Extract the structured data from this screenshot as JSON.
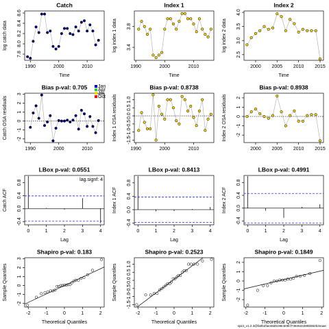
{
  "chart_data": [
    {
      "type": "line",
      "title": "Catch",
      "xlabel": "Time",
      "ylabel": "log catch data",
      "color": "#000080",
      "x": [
        1989,
        1990,
        1991,
        1992,
        1993,
        1994,
        1995,
        1996,
        1997,
        1998,
        1999,
        2000,
        2001,
        2002,
        2003,
        2004,
        2005,
        2006,
        2007,
        2008,
        2009,
        2010,
        2011,
        2012,
        2013,
        2014
      ],
      "values": [
        7.75,
        7.72,
        8.05,
        8.33,
        8.22,
        8.58,
        8.58,
        8.22,
        8.25,
        7.95,
        7.9,
        7.95,
        8.2,
        8.3,
        8.3,
        8.2,
        8.18,
        8.33,
        8.25,
        8.42,
        8.45,
        8.25,
        8.37,
        8.25,
        7.98,
        8.07
      ],
      "xlim": [
        1988,
        2016
      ],
      "ylim": [
        7.68,
        8.64
      ],
      "xticks": [
        1990,
        2000,
        2010
      ],
      "yticks": [
        7.8,
        {
          "value": 8.0,
          "label": "8.0"
        },
        8.2,
        8.4,
        8.6
      ]
    },
    {
      "type": "line",
      "title": "Index 1",
      "xlabel": "Time",
      "ylabel": "log index 1 data",
      "color": "#ffd700",
      "x": [
        1991,
        1992,
        1993,
        1994,
        1995,
        1996,
        1997,
        1998,
        1999,
        2000,
        2001,
        2002,
        2003,
        2004,
        2005,
        2006,
        2007,
        2008,
        2009,
        2010,
        2011,
        2012,
        2013,
        2014,
        2015,
        2016
      ],
      "values": [
        3.75,
        3.9,
        3.8,
        3.65,
        3.75,
        3.25,
        3.2,
        3.25,
        3.3,
        3.75,
        3.95,
        3.95,
        3.85,
        3.75,
        3.9,
        4.05,
        4.05,
        3.95,
        3.95,
        3.85,
        3.7,
        3.95,
        3.75,
        3.65,
        3.6,
        3.75
      ],
      "xlim": [
        1989.5,
        2017
      ],
      "ylim": [
        3.15,
        4.1
      ],
      "xticks": [
        1990,
        2000,
        2010
      ],
      "yticks": [
        3.4,
        3.8
      ]
    },
    {
      "type": "line",
      "title": "Index 2",
      "xlabel": "Time",
      "ylabel": "log index 2 data",
      "color": "#ffd700",
      "x": [
        1998,
        1999,
        2000,
        2001,
        2002,
        2003,
        2004,
        2005,
        2006,
        2007,
        2008,
        2009,
        2010,
        2011,
        2012,
        2013,
        2014,
        2015
      ],
      "values": [
        2.85,
        3.1,
        3.25,
        3.35,
        3.5,
        3.4,
        3.45,
        3.95,
        3.85,
        3.35,
        3.75,
        3.6,
        3.3,
        3.4,
        3.35,
        3.35,
        3.35,
        2.35
      ],
      "xlim": [
        1997.3,
        2015.8
      ],
      "ylim": [
        2.3,
        4.05
      ],
      "xticks": [
        2000,
        2005,
        2010,
        2015
      ],
      "yticks": [
        2.5,
        {
          "value": 3.0,
          "label": "3.0"
        },
        3.5,
        {
          "value": 4.0,
          "label": "4.0"
        }
      ]
    },
    {
      "type": "residual",
      "title": "Bias p-val: 0.705",
      "title_color": "#228b22",
      "xlabel": "",
      "ylabel": "Catch OSA residuals",
      "color": "#000080",
      "x": [
        1990,
        1991,
        1992,
        1993,
        1994,
        1995,
        1996,
        1997,
        1998,
        1999,
        2000,
        2001,
        2002,
        2003,
        2004,
        2005,
        2006,
        2007,
        2008,
        2009,
        2010,
        2011,
        2012,
        2013,
        2014
      ],
      "values": [
        -0.7,
        0.9,
        1.7,
        0.3,
        2.9,
        -0.5,
        -0.1,
        0.6,
        -2.2,
        -0.8,
        0.05,
        0,
        0,
        0.1,
        -0.1,
        0.1,
        0.6,
        -0.9,
        1.2,
        0.8,
        -0.6,
        0.5,
        -0.6,
        -1.3,
        0.05
      ],
      "xlim": [
        1988,
        2016
      ],
      "ylim": [
        -2.4,
        3.1
      ],
      "xticks": [
        1990,
        2000,
        2010
      ],
      "yticks": [
        -2,
        -1,
        0,
        1,
        2,
        3
      ],
      "legend": [
        {
          "name": "Jan",
          "color": "#0000cd"
        },
        {
          "name": "Apr",
          "color": "#32cd32"
        },
        {
          "name": "Jul",
          "color": "#ffd700"
        },
        {
          "name": "Oct",
          "color": "#ff0000"
        }
      ]
    },
    {
      "type": "residual",
      "title": "Bias p-val: 0.8738",
      "title_color": "#228b22",
      "xlabel": "",
      "ylabel": "Index 1 OSA residuals",
      "color": "#ffd700",
      "x": [
        1991,
        1992,
        1993,
        1994,
        1995,
        1996,
        1997,
        1998,
        1999,
        2000,
        2001,
        2002,
        2003,
        2004,
        2005,
        2006,
        2007,
        2008,
        2009,
        2010,
        2011,
        2012,
        2013,
        2014,
        2015,
        2016
      ],
      "values": [
        -0.9,
        0.2,
        -0.4,
        -0.8,
        -0.8,
        1.3,
        -1.5,
        0.6,
        0.1,
        -0.2,
        1.0,
        1.0,
        0.5,
        -0.3,
        -0.5,
        1.2,
        1.0,
        0.3,
        0.6,
        -0.1,
        -0.6,
        0.3,
        1.0,
        -0.9,
        -0.2,
        0.1
      ],
      "xlim": [
        1989.5,
        2017
      ],
      "ylim": [
        -1.65,
        1.4
      ],
      "xticks": [
        1990,
        2000,
        2010
      ],
      "yticks": [
        {
          "value": -1.5,
          "label": "-1.5"
        },
        {
          "value": -1.0,
          "label": "-1.0"
        },
        -0.5,
        {
          "value": 0.0,
          "label": "0.0"
        },
        0.5,
        {
          "value": 1.0,
          "label": "1.0"
        }
      ]
    },
    {
      "type": "residual",
      "title": "Bias p-val: 0.8938",
      "title_color": "#228b22",
      "xlabel": "",
      "ylabel": "Index 2 OSA residuals",
      "color": "#ffd700",
      "x": [
        1998,
        1999,
        2000,
        2001,
        2002,
        2003,
        2004,
        2005,
        2006,
        2007,
        2008,
        2009,
        2010,
        2011,
        2012,
        2013,
        2014,
        2015
      ],
      "values": [
        0,
        0.5,
        0.8,
        0.3,
        0,
        -0.2,
        0.1,
        2.2,
        0.5,
        -1.0,
        0.1,
        0.6,
        -0.5,
        -0.5,
        0.1,
        0.2,
        0.2,
        -2.6
      ],
      "xlim": [
        1997.3,
        2015.8
      ],
      "ylim": [
        -2.8,
        2.5
      ],
      "xticks": [
        2000,
        2005,
        2010,
        2015
      ],
      "yticks": [
        -2,
        -1,
        0,
        1,
        2
      ]
    },
    {
      "type": "acf",
      "title": "LBox p-val: 0.0551",
      "title_color": "#228b22",
      "xlabel": "Lag",
      "ylabel": "Catch ACF",
      "x": [
        0,
        1,
        2,
        3,
        4
      ],
      "values": [
        1,
        0.02,
        -0.03,
        0.32,
        -0.45
      ],
      "ci": [
        -0.39,
        0.39
      ],
      "annotation": "lag.signf: 4",
      "xlim": [
        -0.2,
        4.2
      ],
      "ylim": [
        -0.5,
        1.02
      ],
      "xticks": [
        0,
        1,
        2,
        3,
        4
      ],
      "yticks": [
        -0.4,
        {
          "value": 0.0,
          "label": "0.0"
        },
        0.4,
        0.8
      ]
    },
    {
      "type": "acf",
      "title": "LBox p-val: 0.8413",
      "title_color": "#228b22",
      "xlabel": "Lag",
      "ylabel": "Index 1 ACF",
      "x": [
        0,
        1,
        2,
        3,
        4
      ],
      "values": [
        1,
        -0.05,
        -0.04,
        0.02,
        0.08
      ],
      "ci": [
        -0.38,
        0.38
      ],
      "xlim": [
        -0.2,
        4.2
      ],
      "ylim": [
        -0.45,
        1.02
      ],
      "xticks": [
        0,
        1,
        2,
        3,
        4
      ],
      "yticks": [
        -0.4,
        {
          "value": 0.0,
          "label": "0.0"
        },
        0.4,
        0.8
      ]
    },
    {
      "type": "acf",
      "title": "LBox p-val: 0.4991",
      "title_color": "#228b22",
      "xlabel": "Lag",
      "ylabel": "Index 2 ACF",
      "x": [
        0,
        1,
        2,
        3,
        4
      ],
      "values": [
        1,
        -0.08,
        -0.3,
        0.04,
        0.12
      ],
      "ci": [
        -0.46,
        0.46
      ],
      "xlim": [
        -0.2,
        4.2
      ],
      "ylim": [
        -0.52,
        1.02
      ],
      "xticks": [
        0,
        1,
        2,
        3,
        4
      ],
      "yticks": [
        -0.4,
        {
          "value": 0.0,
          "label": "0.0"
        },
        0.4,
        0.8
      ]
    },
    {
      "type": "qq",
      "title": "Shapiro p-val: 0.183",
      "title_color": "#228b22",
      "xlabel": "Theoretical Quantiles",
      "ylabel": "Sample Quantiles",
      "x": [
        -2.05,
        -1.55,
        -1.28,
        -1.08,
        -0.92,
        -0.77,
        -0.64,
        -0.52,
        -0.41,
        -0.31,
        -0.2,
        -0.1,
        0,
        0.1,
        0.2,
        0.31,
        0.41,
        0.52,
        0.64,
        0.77,
        0.92,
        1.08,
        1.28,
        1.55,
        2.05
      ],
      "values": [
        -2.2,
        -1.3,
        -0.9,
        -0.8,
        -0.7,
        -0.6,
        -0.6,
        -0.5,
        -0.1,
        -0.1,
        0,
        0,
        0.05,
        0.05,
        0.1,
        0.1,
        0.3,
        0.5,
        0.6,
        0.6,
        0.8,
        0.9,
        1.2,
        1.7,
        2.9
      ],
      "xlim": [
        -2.2,
        2.2
      ],
      "ylim": [
        -2.4,
        3.1
      ],
      "xticks": [
        -2,
        -1,
        0,
        1,
        2
      ],
      "yticks": [
        -2,
        -1,
        0,
        1,
        2,
        3
      ]
    },
    {
      "type": "qq",
      "title": "Shapiro p-val: 0.2523",
      "title_color": "#228b22",
      "xlabel": "Theoretical Quantiles",
      "ylabel": "Sample Quantiles",
      "x": [
        -2.07,
        -1.57,
        -1.3,
        -1.1,
        -0.94,
        -0.8,
        -0.67,
        -0.56,
        -0.45,
        -0.35,
        -0.24,
        -0.15,
        -0.05,
        0.05,
        0.15,
        0.24,
        0.35,
        0.45,
        0.56,
        0.67,
        0.8,
        0.94,
        1.1,
        1.3,
        1.57,
        2.07
      ],
      "values": [
        -1.5,
        -0.9,
        -0.9,
        -0.8,
        -0.8,
        -0.6,
        -0.5,
        -0.4,
        -0.3,
        -0.2,
        -0.2,
        -0.1,
        0.1,
        0.1,
        0.2,
        0.3,
        0.3,
        0.5,
        0.6,
        0.6,
        1.0,
        1.0,
        1.0,
        1.0,
        1.2,
        1.3
      ],
      "xlim": [
        -2.2,
        2.2
      ],
      "ylim": [
        -1.65,
        1.4
      ],
      "xticks": [
        -2,
        -1,
        0,
        1,
        2
      ],
      "yticks": [
        {
          "value": -1.5,
          "label": "-1.5"
        },
        {
          "value": -1.0,
          "label": "-1.0"
        },
        -0.5,
        {
          "value": 0.0,
          "label": "0.0"
        },
        0.5,
        {
          "value": 1.0,
          "label": "1.0"
        }
      ]
    },
    {
      "type": "qq",
      "title": "Shapiro p-val: 0.1849",
      "title_color": "#228b22",
      "xlabel": "Theoretical Quantiles",
      "ylabel": "Sample Quantiles",
      "x": [
        -1.91,
        -1.38,
        -1.09,
        -0.86,
        -0.67,
        -0.51,
        -0.36,
        -0.21,
        -0.07,
        0.07,
        0.21,
        0.36,
        0.51,
        0.67,
        0.86,
        1.09,
        1.38,
        1.91
      ],
      "values": [
        -2.6,
        -1.0,
        -0.5,
        -0.5,
        -0.2,
        0,
        0,
        0.1,
        0.1,
        0.1,
        0.2,
        0.2,
        0.3,
        0.5,
        0.5,
        0.6,
        0.8,
        2.2
      ],
      "xlim": [
        -2.1,
        2.1
      ],
      "ylim": [
        -2.8,
        2.5
      ],
      "xticks": [
        -2,
        -1,
        0,
        1,
        2
      ],
      "yticks": [
        -2,
        -1,
        0,
        1,
        2
      ]
    }
  ],
  "footer": "spict_v1.2.3@fa0b2fae48d0c88c609cf7384634389b55eb2eaae"
}
